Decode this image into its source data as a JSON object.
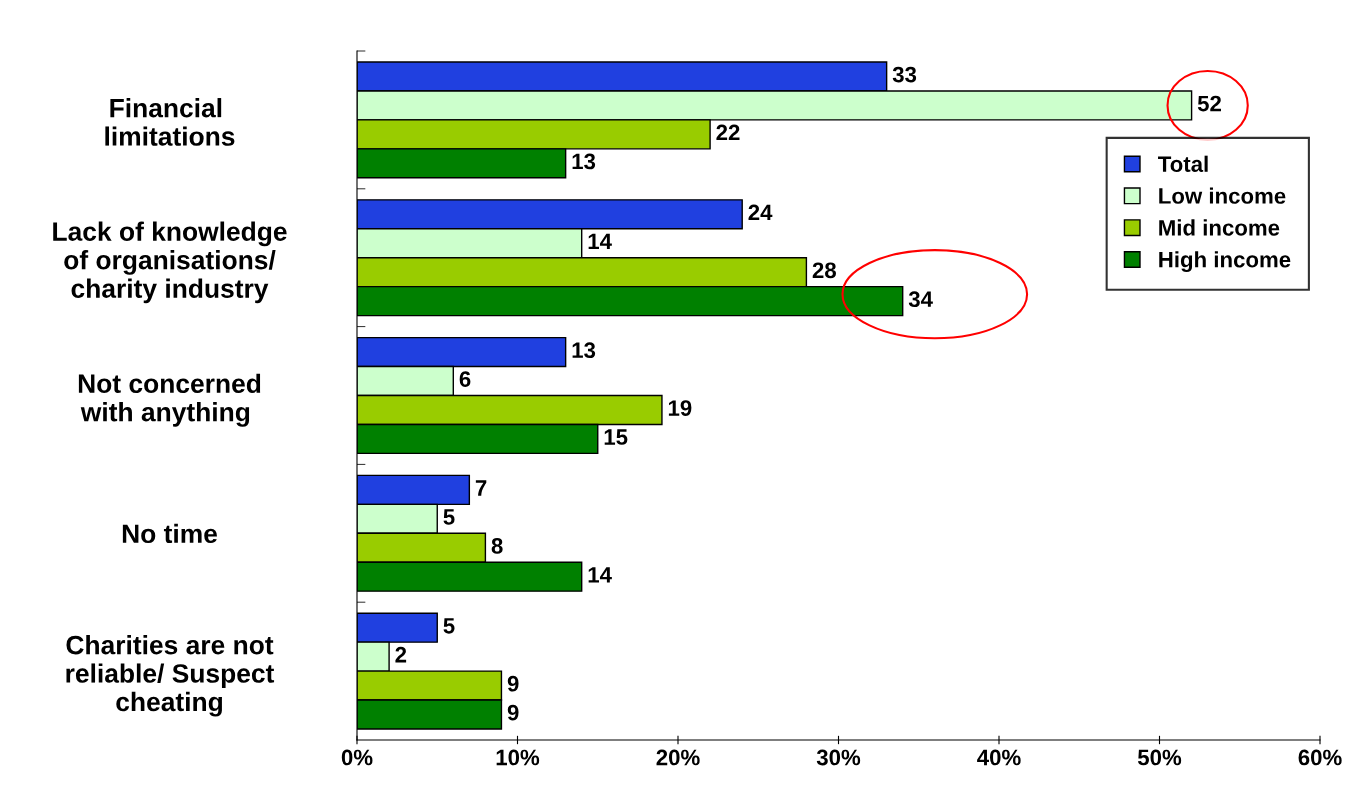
{
  "chart_data": {
    "type": "bar",
    "orientation": "horizontal",
    "categories": [
      "Financial \nlimitations",
      "Lack of knowledge\nof organisations/\ncharity industry",
      "Not concerned\nwith anything ",
      "No time",
      "Charities are not\nreliable/ Suspect\ncheating"
    ],
    "series": [
      {
        "name": "Total",
        "color": "#2040e0",
        "values": [
          33,
          24,
          13,
          7,
          5
        ]
      },
      {
        "name": "Low income",
        "color": "#ccffcc",
        "values": [
          52,
          14,
          6,
          5,
          2
        ]
      },
      {
        "name": "Mid income",
        "color": "#99cc00",
        "values": [
          22,
          28,
          19,
          8,
          9
        ]
      },
      {
        "name": "High income",
        "color": "#008000",
        "values": [
          13,
          34,
          15,
          14,
          9
        ]
      }
    ],
    "xlim": [
      0,
      60
    ],
    "xticks": [
      {
        "value": 0,
        "label": "0%"
      },
      {
        "value": 10,
        "label": "10%"
      },
      {
        "value": 20,
        "label": "20%"
      },
      {
        "value": 30,
        "label": "30%"
      },
      {
        "value": 40,
        "label": "40%"
      },
      {
        "value": 50,
        "label": "50%"
      },
      {
        "value": 60,
        "label": "60%"
      }
    ],
    "data_labels": true,
    "legend": "top right",
    "grid": false
  }
}
